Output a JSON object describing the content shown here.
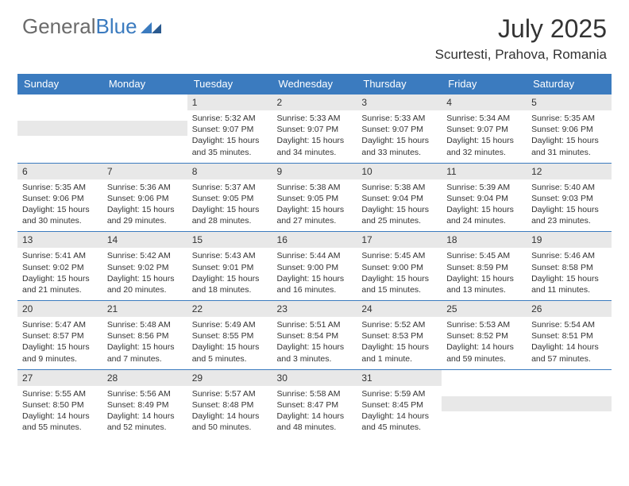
{
  "logo": {
    "text1": "General",
    "text2": "Blue"
  },
  "title": "July 2025",
  "location": "Scurtesti, Prahova, Romania",
  "colors": {
    "header_bg": "#3b7bbf",
    "daynum_bg": "#e8e8e8"
  },
  "weekdays": [
    "Sunday",
    "Monday",
    "Tuesday",
    "Wednesday",
    "Thursday",
    "Friday",
    "Saturday"
  ],
  "weeks": [
    [
      null,
      null,
      {
        "n": "1",
        "sr": "5:32 AM",
        "ss": "9:07 PM",
        "dl": "15 hours and 35 minutes."
      },
      {
        "n": "2",
        "sr": "5:33 AM",
        "ss": "9:07 PM",
        "dl": "15 hours and 34 minutes."
      },
      {
        "n": "3",
        "sr": "5:33 AM",
        "ss": "9:07 PM",
        "dl": "15 hours and 33 minutes."
      },
      {
        "n": "4",
        "sr": "5:34 AM",
        "ss": "9:07 PM",
        "dl": "15 hours and 32 minutes."
      },
      {
        "n": "5",
        "sr": "5:35 AM",
        "ss": "9:06 PM",
        "dl": "15 hours and 31 minutes."
      }
    ],
    [
      {
        "n": "6",
        "sr": "5:35 AM",
        "ss": "9:06 PM",
        "dl": "15 hours and 30 minutes."
      },
      {
        "n": "7",
        "sr": "5:36 AM",
        "ss": "9:06 PM",
        "dl": "15 hours and 29 minutes."
      },
      {
        "n": "8",
        "sr": "5:37 AM",
        "ss": "9:05 PM",
        "dl": "15 hours and 28 minutes."
      },
      {
        "n": "9",
        "sr": "5:38 AM",
        "ss": "9:05 PM",
        "dl": "15 hours and 27 minutes."
      },
      {
        "n": "10",
        "sr": "5:38 AM",
        "ss": "9:04 PM",
        "dl": "15 hours and 25 minutes."
      },
      {
        "n": "11",
        "sr": "5:39 AM",
        "ss": "9:04 PM",
        "dl": "15 hours and 24 minutes."
      },
      {
        "n": "12",
        "sr": "5:40 AM",
        "ss": "9:03 PM",
        "dl": "15 hours and 23 minutes."
      }
    ],
    [
      {
        "n": "13",
        "sr": "5:41 AM",
        "ss": "9:02 PM",
        "dl": "15 hours and 21 minutes."
      },
      {
        "n": "14",
        "sr": "5:42 AM",
        "ss": "9:02 PM",
        "dl": "15 hours and 20 minutes."
      },
      {
        "n": "15",
        "sr": "5:43 AM",
        "ss": "9:01 PM",
        "dl": "15 hours and 18 minutes."
      },
      {
        "n": "16",
        "sr": "5:44 AM",
        "ss": "9:00 PM",
        "dl": "15 hours and 16 minutes."
      },
      {
        "n": "17",
        "sr": "5:45 AM",
        "ss": "9:00 PM",
        "dl": "15 hours and 15 minutes."
      },
      {
        "n": "18",
        "sr": "5:45 AM",
        "ss": "8:59 PM",
        "dl": "15 hours and 13 minutes."
      },
      {
        "n": "19",
        "sr": "5:46 AM",
        "ss": "8:58 PM",
        "dl": "15 hours and 11 minutes."
      }
    ],
    [
      {
        "n": "20",
        "sr": "5:47 AM",
        "ss": "8:57 PM",
        "dl": "15 hours and 9 minutes."
      },
      {
        "n": "21",
        "sr": "5:48 AM",
        "ss": "8:56 PM",
        "dl": "15 hours and 7 minutes."
      },
      {
        "n": "22",
        "sr": "5:49 AM",
        "ss": "8:55 PM",
        "dl": "15 hours and 5 minutes."
      },
      {
        "n": "23",
        "sr": "5:51 AM",
        "ss": "8:54 PM",
        "dl": "15 hours and 3 minutes."
      },
      {
        "n": "24",
        "sr": "5:52 AM",
        "ss": "8:53 PM",
        "dl": "15 hours and 1 minute."
      },
      {
        "n": "25",
        "sr": "5:53 AM",
        "ss": "8:52 PM",
        "dl": "14 hours and 59 minutes."
      },
      {
        "n": "26",
        "sr": "5:54 AM",
        "ss": "8:51 PM",
        "dl": "14 hours and 57 minutes."
      }
    ],
    [
      {
        "n": "27",
        "sr": "5:55 AM",
        "ss": "8:50 PM",
        "dl": "14 hours and 55 minutes."
      },
      {
        "n": "28",
        "sr": "5:56 AM",
        "ss": "8:49 PM",
        "dl": "14 hours and 52 minutes."
      },
      {
        "n": "29",
        "sr": "5:57 AM",
        "ss": "8:48 PM",
        "dl": "14 hours and 50 minutes."
      },
      {
        "n": "30",
        "sr": "5:58 AM",
        "ss": "8:47 PM",
        "dl": "14 hours and 48 minutes."
      },
      {
        "n": "31",
        "sr": "5:59 AM",
        "ss": "8:45 PM",
        "dl": "14 hours and 45 minutes."
      },
      null,
      null
    ]
  ],
  "labels": {
    "sunrise": "Sunrise: ",
    "sunset": "Sunset: ",
    "daylight": "Daylight: "
  }
}
